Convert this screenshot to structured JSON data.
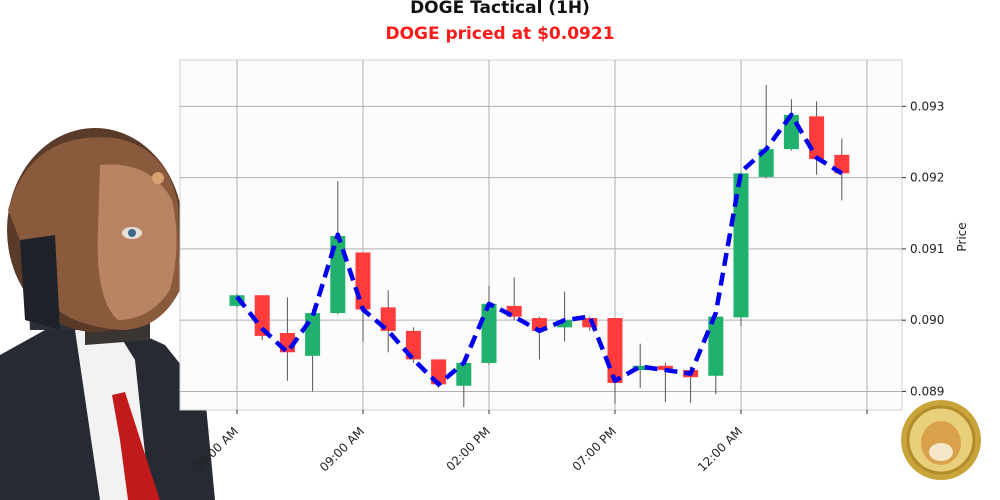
{
  "chart_data": {
    "type": "candlestick",
    "title": "DOGE Tactical (1H)",
    "subtitle": "DOGE priced at $0.0921",
    "ylabel": "Price",
    "xlabel": "",
    "x_tick_labels": [
      "04:00 AM",
      "09:00 AM",
      "02:00 PM",
      "07:00 PM",
      "12:00 AM"
    ],
    "y_ticks": [
      0.089,
      0.09,
      0.091,
      0.092,
      0.093
    ],
    "y_tick_labels": [
      "0.089",
      "0.090",
      "0.091",
      "0.092",
      "0.093"
    ],
    "ylim": [
      0.08874,
      0.09365
    ],
    "grid": true,
    "colors": {
      "up": "#20b26c",
      "down": "#ff3b3b",
      "trend": "#0000ee",
      "grid": "#b0b0b0"
    },
    "candles": [
      {
        "o": 0.0902,
        "c": 0.09035,
        "h": 0.09037,
        "l": 0.09018
      },
      {
        "o": 0.09035,
        "c": 0.08978,
        "h": 0.09035,
        "l": 0.08972
      },
      {
        "o": 0.08982,
        "c": 0.08955,
        "h": 0.09032,
        "l": 0.08915
      },
      {
        "o": 0.0895,
        "c": 0.0901,
        "h": 0.09015,
        "l": 0.089
      },
      {
        "o": 0.0901,
        "c": 0.09118,
        "h": 0.09195,
        "l": 0.09008
      },
      {
        "o": 0.09095,
        "c": 0.09015,
        "h": 0.09095,
        "l": 0.0897
      },
      {
        "o": 0.09018,
        "c": 0.08985,
        "h": 0.09042,
        "l": 0.08955
      },
      {
        "o": 0.08985,
        "c": 0.08945,
        "h": 0.0899,
        "l": 0.0894
      },
      {
        "o": 0.08945,
        "c": 0.0891,
        "h": 0.08945,
        "l": 0.08905
      },
      {
        "o": 0.08908,
        "c": 0.0894,
        "h": 0.0894,
        "l": 0.08878
      },
      {
        "o": 0.0894,
        "c": 0.09023,
        "h": 0.09048,
        "l": 0.08938
      },
      {
        "o": 0.0902,
        "c": 0.09005,
        "h": 0.0906,
        "l": 0.09
      },
      {
        "o": 0.09003,
        "c": 0.08985,
        "h": 0.09005,
        "l": 0.08945
      },
      {
        "o": 0.0899,
        "c": 0.09,
        "h": 0.0904,
        "l": 0.0897
      },
      {
        "o": 0.09003,
        "c": 0.0899,
        "h": 0.09005,
        "l": 0.08985
      },
      {
        "o": 0.09003,
        "c": 0.08912,
        "h": 0.09003,
        "l": 0.08883
      },
      {
        "o": 0.0893,
        "c": 0.08936,
        "h": 0.08967,
        "l": 0.08905
      },
      {
        "o": 0.08936,
        "c": 0.0893,
        "h": 0.0894,
        "l": 0.08885
      },
      {
        "o": 0.0893,
        "c": 0.0892,
        "h": 0.08935,
        "l": 0.08884
      },
      {
        "o": 0.08922,
        "c": 0.09005,
        "h": 0.09008,
        "l": 0.08896
      },
      {
        "o": 0.09004,
        "c": 0.09206,
        "h": 0.09208,
        "l": 0.08992
      },
      {
        "o": 0.09201,
        "c": 0.0924,
        "h": 0.0933,
        "l": 0.09199
      },
      {
        "o": 0.0924,
        "c": 0.09288,
        "h": 0.0931,
        "l": 0.09238
      },
      {
        "o": 0.09286,
        "c": 0.09226,
        "h": 0.09307,
        "l": 0.09204
      },
      {
        "o": 0.09232,
        "c": 0.09206,
        "h": 0.09255,
        "l": 0.09168
      }
    ],
    "trend": [
      0.09033,
      0.08988,
      0.08955,
      0.09005,
      0.0912,
      0.09015,
      0.08985,
      0.08945,
      0.0891,
      0.0894,
      0.09023,
      0.09005,
      0.08985,
      0.09,
      0.09005,
      0.08915,
      0.08935,
      0.0893,
      0.08925,
      0.0901,
      0.09208,
      0.0924,
      0.09288,
      0.09228,
      0.09206
    ]
  }
}
